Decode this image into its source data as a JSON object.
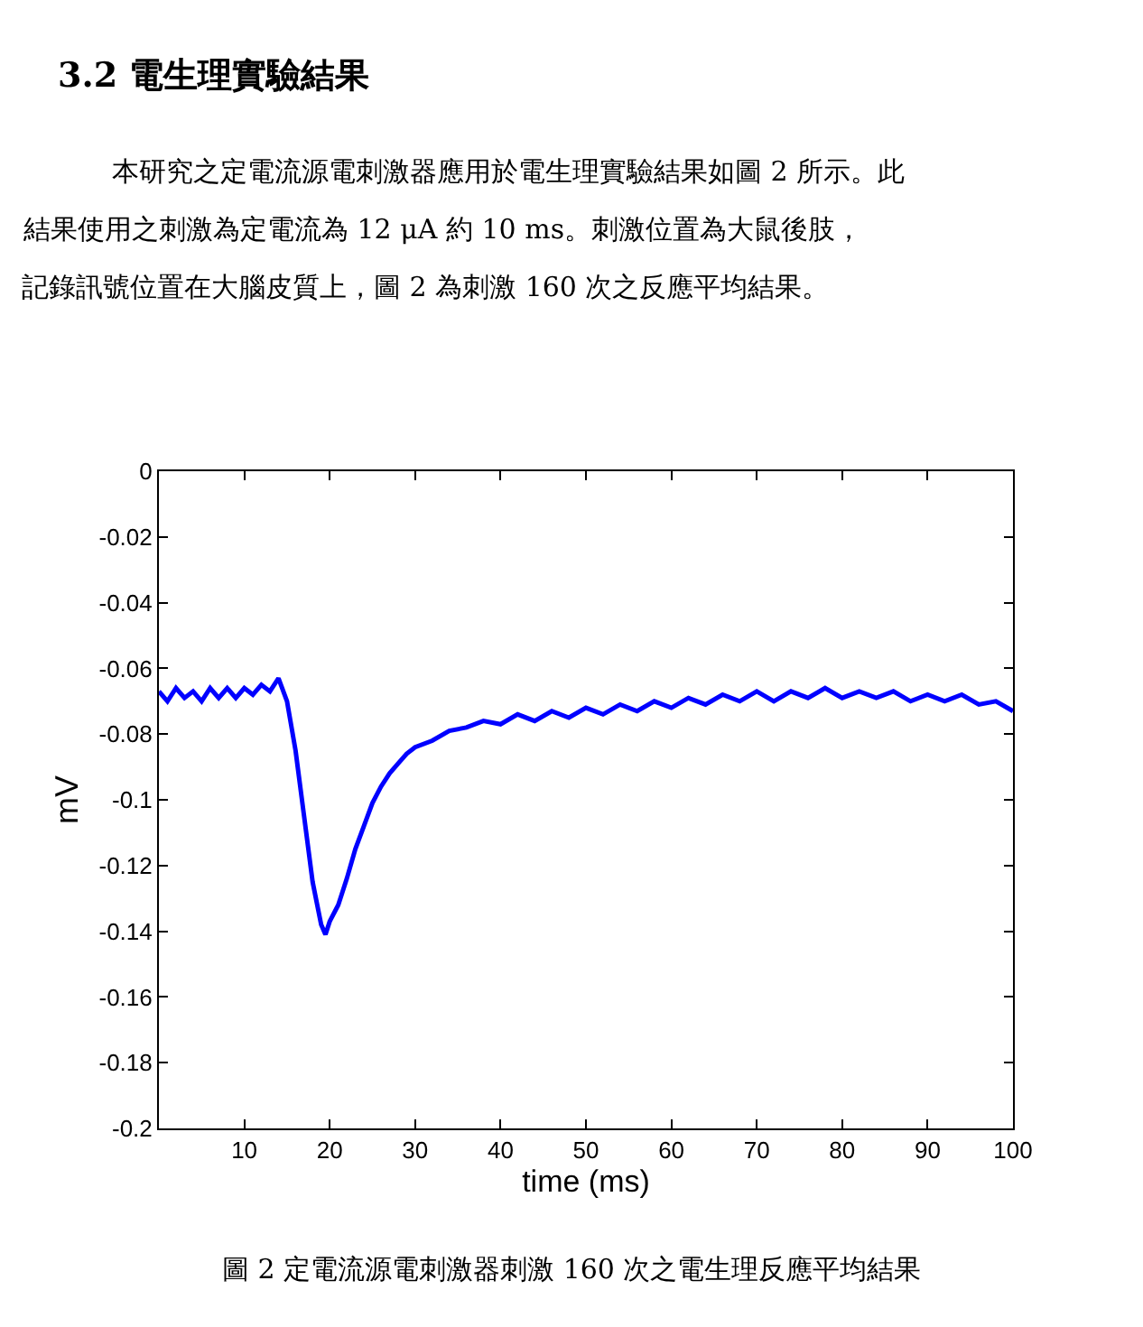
{
  "chart_data": {
    "type": "line",
    "title": "3.2 電生理實驗結果",
    "annotations": [
      "本研究之定電流源電刺激器應用於電生理實驗結果如圖 2 所示。此",
      "結果使用之刺激為定電流為 12 μA 約 10 ms。刺激位置為大鼠後肢，",
      "記錄訊號位置在大腦皮質上，圖 2 為刺激 160 次之反應平均結果。",
      "圖 2 定電流源電刺激器刺激 160 次之電生理反應平均結果"
    ],
    "xlabel": "time (ms)",
    "ylabel": "mV",
    "x": [
      0,
      1,
      2,
      3,
      4,
      5,
      6,
      7,
      8,
      9,
      10,
      11,
      12,
      13,
      14,
      15,
      16,
      17,
      18,
      19,
      19.5,
      20,
      21,
      22,
      23,
      24,
      25,
      26,
      27,
      28,
      29,
      30,
      32,
      34,
      36,
      38,
      40,
      42,
      44,
      46,
      48,
      50,
      52,
      54,
      56,
      58,
      60,
      62,
      64,
      66,
      68,
      70,
      72,
      74,
      76,
      78,
      80,
      82,
      84,
      86,
      88,
      90,
      92,
      94,
      96,
      98,
      100
    ],
    "series": [
      {
        "color": "#0000ff",
        "values": [
          -0.067,
          -0.07,
          -0.066,
          -0.069,
          -0.067,
          -0.07,
          -0.066,
          -0.069,
          -0.066,
          -0.069,
          -0.066,
          -0.068,
          -0.065,
          -0.067,
          -0.063,
          -0.07,
          -0.085,
          -0.105,
          -0.125,
          -0.138,
          -0.141,
          -0.137,
          -0.132,
          -0.124,
          -0.115,
          -0.108,
          -0.101,
          -0.096,
          -0.092,
          -0.089,
          -0.086,
          -0.084,
          -0.082,
          -0.079,
          -0.078,
          -0.076,
          -0.077,
          -0.074,
          -0.076,
          -0.073,
          -0.075,
          -0.072,
          -0.074,
          -0.071,
          -0.073,
          -0.07,
          -0.072,
          -0.069,
          -0.071,
          -0.068,
          -0.07,
          -0.067,
          -0.07,
          -0.067,
          -0.069,
          -0.066,
          -0.069,
          -0.067,
          -0.069,
          -0.067,
          -0.07,
          -0.068,
          -0.07,
          -0.068,
          -0.071,
          -0.07,
          -0.073
        ]
      }
    ],
    "xlim": [
      0,
      100
    ],
    "xticks": [
      10,
      20,
      30,
      40,
      50,
      60,
      70,
      80,
      90,
      100
    ],
    "ylim": [
      -0.2,
      0
    ],
    "yticks": [
      0,
      -0.02,
      -0.04,
      -0.06,
      -0.08,
      -0.1,
      -0.12,
      -0.14,
      -0.16,
      -0.18,
      -0.2
    ],
    "legend": false,
    "marker": "none",
    "line_style": "solid"
  }
}
